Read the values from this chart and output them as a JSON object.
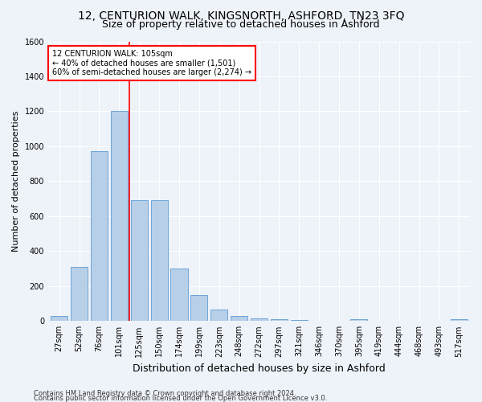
{
  "title1": "12, CENTURION WALK, KINGSNORTH, ASHFORD, TN23 3FQ",
  "title2": "Size of property relative to detached houses in Ashford",
  "xlabel": "Distribution of detached houses by size in Ashford",
  "ylabel": "Number of detached properties",
  "footer1": "Contains HM Land Registry data © Crown copyright and database right 2024.",
  "footer2": "Contains public sector information licensed under the Open Government Licence v3.0.",
  "annotation_line1": "12 CENTURION WALK: 105sqm",
  "annotation_line2": "← 40% of detached houses are smaller (1,501)",
  "annotation_line3": "60% of semi-detached houses are larger (2,274) →",
  "bar_color": "#b8cfe8",
  "bar_edge_color": "#5b9bd5",
  "vline_color": "red",
  "vline_x_idx": 3,
  "categories": [
    "27sqm",
    "52sqm",
    "76sqm",
    "101sqm",
    "125sqm",
    "150sqm",
    "174sqm",
    "199sqm",
    "223sqm",
    "248sqm",
    "272sqm",
    "297sqm",
    "321sqm",
    "346sqm",
    "370sqm",
    "395sqm",
    "419sqm",
    "444sqm",
    "468sqm",
    "493sqm",
    "517sqm"
  ],
  "values": [
    30,
    310,
    970,
    1200,
    690,
    690,
    300,
    150,
    65,
    30,
    15,
    10,
    5,
    0,
    0,
    10,
    0,
    0,
    0,
    0,
    10
  ],
  "ylim": [
    0,
    1600
  ],
  "yticks": [
    0,
    200,
    400,
    600,
    800,
    1000,
    1200,
    1400,
    1600
  ],
  "background_color": "#eef2f9",
  "plot_background": "#eef2f9",
  "grid_color": "#ffffff",
  "title_fontsize": 10,
  "subtitle_fontsize": 9,
  "footer_fontsize": 6,
  "ylabel_fontsize": 8,
  "xlabel_fontsize": 9,
  "tick_fontsize": 7,
  "annot_fontsize": 7
}
